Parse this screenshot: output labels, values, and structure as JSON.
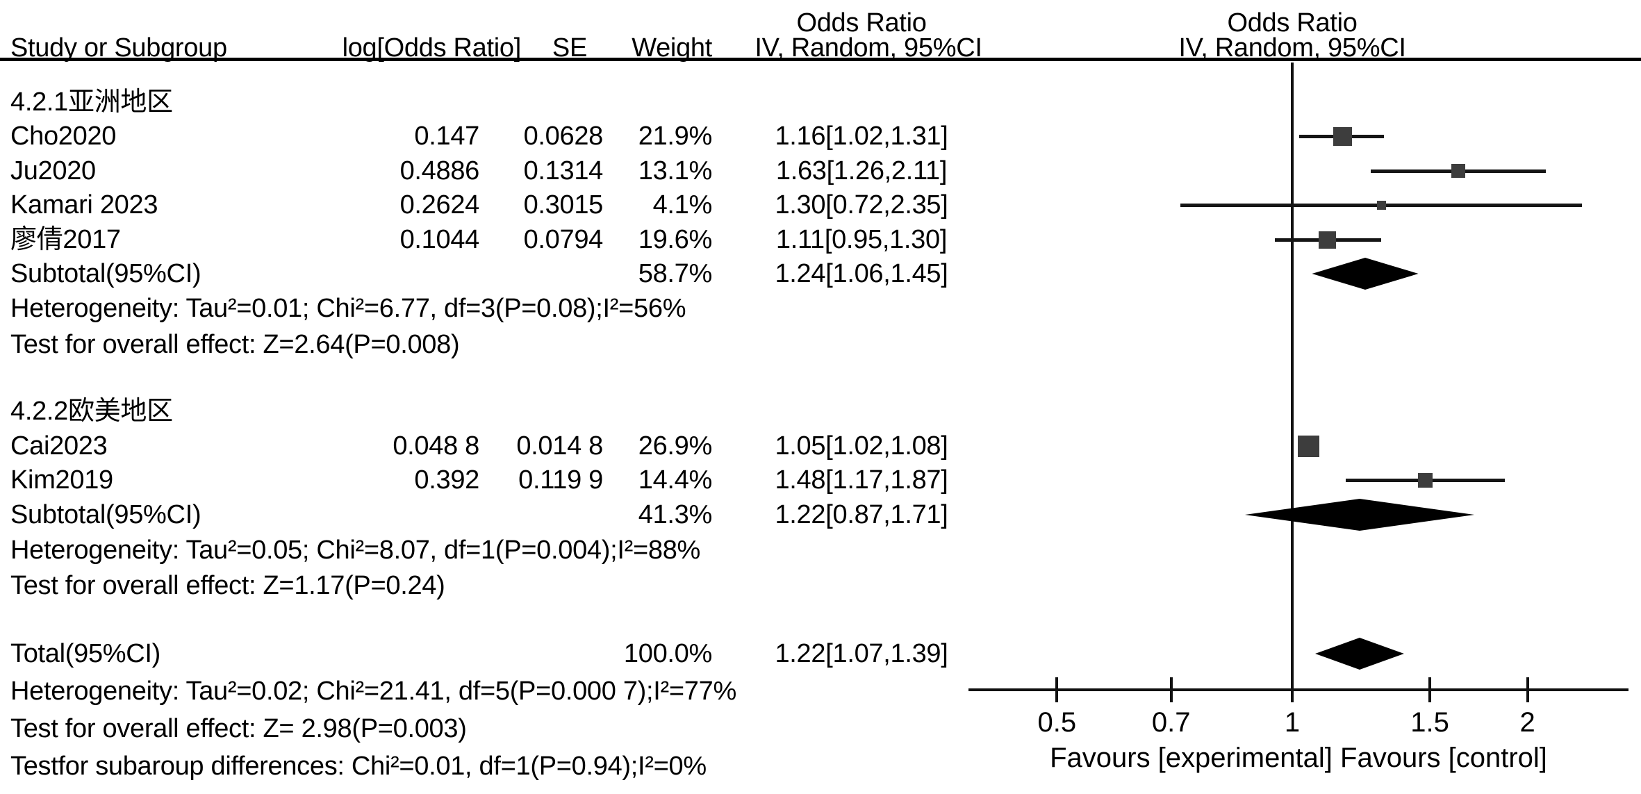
{
  "colors": {
    "marker_square": "#3d3d3d",
    "ci_line": "#151515",
    "diamond": "#000000",
    "text": "#000000",
    "rule": "#000000"
  },
  "headers": {
    "study": "Study or Subgroup",
    "log_or": "log[Odds Ratio]",
    "se": "SE",
    "weight": "Weight",
    "or_col_line1": "Odds Ratio",
    "or_col_line2": "IV, Random, 95%CI",
    "plot_line1": "Odds Ratio",
    "plot_line2": "IV, Random, 95%CI"
  },
  "chart_data": {
    "type": "forest",
    "effect_measure": "Odds Ratio",
    "model": "IV, Random, 95%CI",
    "x_scale": "log10",
    "x_ticks": [
      "0.5",
      "0.7",
      "1",
      "1.5",
      "2"
    ],
    "x_tick_values": [
      0.5,
      0.7,
      1,
      1.5,
      2
    ],
    "no_effect_value": 1,
    "xlabel": "Favours [experimental] Favours [control]",
    "groups": [
      {
        "label": "4.2.1亚洲地区",
        "studies": [
          {
            "name": "Cho2020",
            "log_or": "0.147",
            "se": "0.0628",
            "weight": "21.9%",
            "weight_value": 21.9,
            "or": 1.16,
            "low": 1.02,
            "high": 1.31,
            "or_ci": "1.16[1.02,1.31]"
          },
          {
            "name": "Ju2020",
            "log_or": "0.4886",
            "se": "0.1314",
            "weight": "13.1%",
            "weight_value": 13.1,
            "or": 1.63,
            "low": 1.26,
            "high": 2.11,
            "or_ci": "1.63[1.26,2.11]"
          },
          {
            "name": "Kamari 2023",
            "log_or": "0.2624",
            "se": "0.3015",
            "weight": "4.1%",
            "weight_value": 4.1,
            "or": 1.3,
            "low": 0.72,
            "high": 2.35,
            "or_ci": "1.30[0.72,2.35]"
          },
          {
            "name": "廖倩2017",
            "log_or": "0.1044",
            "se": "0.0794",
            "weight": "19.6%",
            "weight_value": 19.6,
            "or": 1.11,
            "low": 0.95,
            "high": 1.3,
            "or_ci": "1.11[0.95,1.30]"
          }
        ],
        "subtotal": {
          "name": "Subtotal(95%CI)",
          "weight": "58.7%",
          "or": 1.24,
          "low": 1.06,
          "high": 1.45,
          "or_ci": "1.24[1.06,1.45]"
        },
        "heterogeneity": "Heterogeneity: Tau²=0.01; Chi²=6.77, df=3(P=0.08);I²=56%",
        "overall_effect": "Test for overall effect: Z=2.64(P=0.008)"
      },
      {
        "label": "4.2.2欧美地区",
        "studies": [
          {
            "name": "Cai2023",
            "log_or": "0.048 8",
            "se": "0.014 8",
            "weight": "26.9%",
            "weight_value": 26.9,
            "or": 1.05,
            "low": 1.02,
            "high": 1.08,
            "or_ci": "1.05[1.02,1.08]"
          },
          {
            "name": "Kim2019",
            "log_or": "0.392",
            "se": "0.119 9",
            "weight": "14.4%",
            "weight_value": 14.4,
            "or": 1.48,
            "low": 1.17,
            "high": 1.87,
            "or_ci": "1.48[1.17,1.87]"
          }
        ],
        "subtotal": {
          "name": "Subtotal(95%CI)",
          "weight": "41.3%",
          "or": 1.22,
          "low": 0.87,
          "high": 1.71,
          "or_ci": "1.22[0.87,1.71]"
        },
        "heterogeneity": "Heterogeneity: Tau²=0.05; Chi²=8.07, df=1(P=0.004);I²=88%",
        "overall_effect": "Test for overall effect: Z=1.17(P=0.24)"
      }
    ],
    "total": {
      "name": "Total(95%CI)",
      "weight": "100.0%",
      "or": 1.22,
      "low": 1.07,
      "high": 1.39,
      "or_ci": "1.22[1.07,1.39]"
    },
    "total_heterogeneity": "Heterogeneity: Tau²=0.02; Chi²=21.41, df=5(P=0.000 7);I²=77%",
    "total_overall_effect": "Test for overall effect: Z= 2.98(P=0.003)",
    "subgroup_differences": "Testfor subaroup differences: Chi²=0.01, df=1(P=0.94);I²=0%"
  }
}
